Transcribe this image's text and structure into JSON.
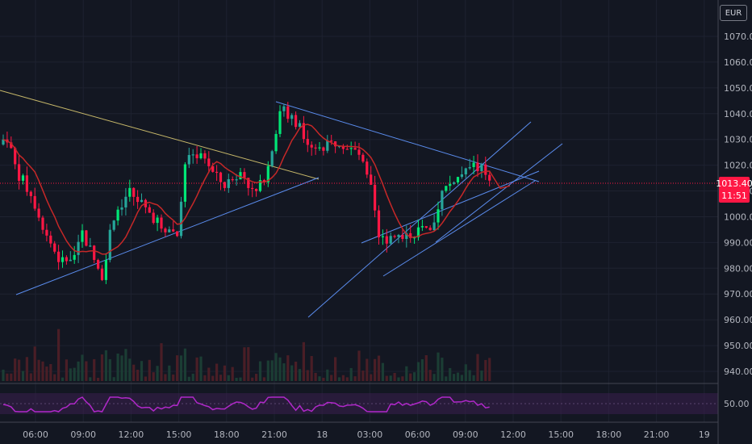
{
  "currency": "EUR",
  "currency_prefix": "1",
  "last_price": "1013.40",
  "countdown": "11:51",
  "colors": {
    "up": "#26a69a",
    "up_bright": "#00e676",
    "down": "#ff1744",
    "ma": "#c62828",
    "trend": "#5b8def",
    "trend_yellow": "#c8b96a",
    "rsi": "#b028c9",
    "grid": "#1e2230"
  },
  "chart_data": {
    "type": "candlestick",
    "x_ticks": [
      "06:00",
      "09:00",
      "12:00",
      "15:00",
      "18:00",
      "21:00",
      "18",
      "03:00",
      "06:00",
      "09:00",
      "12:00",
      "15:00",
      "18:00",
      "21:00",
      "19"
    ],
    "y_ticks": [
      940,
      950,
      960,
      970,
      980,
      990,
      1000,
      1010,
      1020,
      1030,
      1040,
      1050,
      1060,
      1070
    ],
    "ylim": [
      935,
      1080
    ],
    "rsi_ticks": [
      50
    ],
    "rsi_labels": [
      "50.00"
    ]
  }
}
